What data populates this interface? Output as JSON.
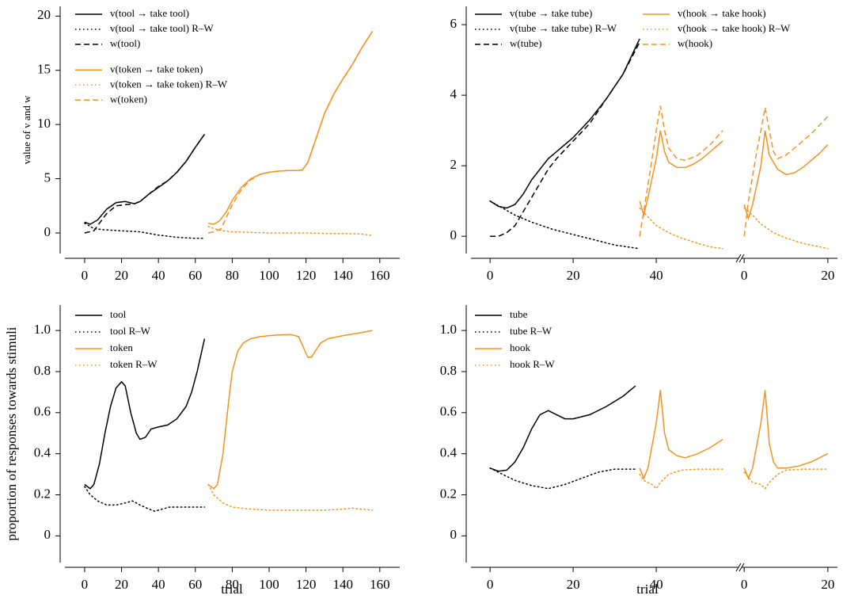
{
  "chart_data": [
    {
      "type": "line",
      "y_label": "value of v and w",
      "xlim": [
        -10.7,
        170.8
      ],
      "ylim": [
        -1.9,
        20.9
      ],
      "xticks": [
        0,
        20,
        40,
        60,
        80,
        100,
        120,
        140,
        160
      ],
      "yticks": [
        0,
        5,
        10,
        15,
        20
      ],
      "series": [
        {
          "name": "v(tool → take tool)",
          "color": "#000000",
          "dash": "solid",
          "x": [
            0,
            3,
            7,
            12,
            17,
            22,
            27,
            30,
            35,
            40,
            45,
            50,
            55,
            60,
            65
          ],
          "values": [
            1.0,
            0.8,
            1.2,
            2.2,
            2.8,
            2.9,
            2.7,
            2.9,
            3.6,
            4.2,
            4.8,
            5.6,
            6.6,
            7.9,
            9.1
          ]
        },
        {
          "name": "v(tool → take tool) R–W",
          "color": "#000000",
          "dash": "dotted",
          "x": [
            0,
            5,
            10,
            20,
            30,
            40,
            50,
            60,
            65
          ],
          "values": [
            0.9,
            0.4,
            0.3,
            0.2,
            0.1,
            -0.2,
            -0.4,
            -0.5,
            -0.5
          ]
        },
        {
          "name": "w(tool)",
          "color": "#000000",
          "dash": "dashed",
          "x": [
            0,
            5,
            8,
            12,
            17,
            22,
            27,
            30,
            35,
            40,
            45,
            50,
            55,
            60,
            65
          ],
          "values": [
            0,
            0.2,
            0.9,
            1.8,
            2.5,
            2.6,
            2.7,
            2.9,
            3.6,
            4.3,
            4.8,
            5.6,
            6.6,
            7.9,
            9.1
          ]
        },
        {
          "name": "v(token → take token)",
          "color": "#f5921e",
          "dash": "solid",
          "x": [
            67,
            70,
            73,
            77,
            80,
            85,
            90,
            95,
            100,
            105,
            110,
            115,
            118,
            121,
            125,
            130,
            135,
            140,
            145,
            150,
            156
          ],
          "values": [
            0.9,
            0.8,
            1.1,
            2.0,
            3.0,
            4.2,
            5.0,
            5.4,
            5.6,
            5.7,
            5.75,
            5.75,
            5.8,
            6.5,
            8.5,
            11,
            12.8,
            14.2,
            15.5,
            17,
            18.6
          ]
        },
        {
          "name": "v(token → take token) R–W",
          "color": "#f5921e",
          "dash": "dotted",
          "x": [
            67,
            70,
            75,
            80,
            90,
            100,
            110,
            120,
            130,
            140,
            150,
            155
          ],
          "values": [
            0.6,
            0.4,
            0.2,
            0.1,
            0.05,
            0,
            0,
            0,
            -0.05,
            -0.05,
            -0.1,
            -0.2
          ]
        },
        {
          "name": "w(token)",
          "color": "#f5921e",
          "dash": "dashed",
          "x": [
            67,
            70,
            74,
            77,
            80,
            85,
            90,
            95,
            100,
            105,
            110,
            115,
            118,
            121,
            125,
            130,
            135,
            140,
            145,
            150,
            156
          ],
          "values": [
            0,
            0.1,
            0.4,
            1.5,
            2.6,
            4.0,
            4.9,
            5.4,
            5.6,
            5.7,
            5.75,
            5.75,
            5.8,
            6.5,
            8.5,
            11,
            12.8,
            14.2,
            15.5,
            17,
            18.6
          ]
        }
      ]
    },
    {
      "type": "line",
      "xlim": [
        -4.6,
        59.8
      ],
      "ylim": [
        -0.49,
        6.52
      ],
      "xticks": [
        0,
        20,
        40
      ],
      "yticks": [
        0,
        2,
        4,
        6
      ],
      "series": [
        {
          "name": "v(tube → take tube)",
          "color": "#000000",
          "dash": "solid",
          "x": [
            0,
            2,
            4,
            6,
            8,
            10,
            12,
            14,
            16,
            18,
            20,
            24,
            28,
            32,
            36
          ],
          "values": [
            1.0,
            0.85,
            0.8,
            0.9,
            1.2,
            1.6,
            1.9,
            2.2,
            2.4,
            2.6,
            2.8,
            3.3,
            3.9,
            4.6,
            5.6
          ]
        },
        {
          "name": "v(tube → take tube) R–W",
          "color": "#000000",
          "dash": "dotted",
          "x": [
            0,
            3,
            6,
            10,
            15,
            20,
            25,
            30,
            36
          ],
          "values": [
            1.0,
            0.8,
            0.6,
            0.4,
            0.2,
            0.05,
            -0.1,
            -0.25,
            -0.35
          ]
        },
        {
          "name": "w(tube)",
          "color": "#000000",
          "dash": "dashed",
          "x": [
            0,
            2,
            4,
            6,
            8,
            10,
            12,
            14,
            16,
            18,
            20,
            24,
            28,
            32,
            36
          ],
          "values": [
            0,
            0,
            0.1,
            0.3,
            0.7,
            1.1,
            1.5,
            1.9,
            2.2,
            2.45,
            2.7,
            3.2,
            3.9,
            4.6,
            5.5
          ]
        },
        {
          "name": "v(hook → take hook)",
          "color": "#f5921e",
          "dash": "solid",
          "x": [
            36,
            37,
            38,
            40,
            41,
            42,
            43,
            45,
            47,
            49,
            51,
            53,
            55,
            56
          ],
          "values": [
            1.0,
            0.6,
            1.1,
            2.2,
            3.0,
            2.4,
            2.1,
            1.95,
            1.95,
            2.05,
            2.2,
            2.4,
            2.6,
            2.7
          ]
        },
        {
          "name": "v(hook → take hook) R–W",
          "color": "#f5921e",
          "dash": "dotted",
          "x": [
            36,
            38,
            40,
            43,
            46,
            50,
            53,
            56
          ],
          "values": [
            0.8,
            0.55,
            0.3,
            0.1,
            -0.05,
            -0.2,
            -0.3,
            -0.35
          ]
        },
        {
          "name": "w(hook)",
          "color": "#f5921e",
          "dash": "dashed",
          "x": [
            36,
            37,
            39,
            40,
            41,
            42,
            43,
            45,
            47,
            50,
            53,
            56
          ],
          "values": [
            0,
            0.7,
            2.2,
            3.0,
            3.7,
            3.0,
            2.5,
            2.2,
            2.15,
            2.3,
            2.6,
            3.0
          ]
        }
      ]
    },
    {
      "type": "line",
      "xlim": [
        -0.6,
        22.3
      ],
      "ylim": [
        -0.49,
        6.52
      ],
      "xticks": [
        0,
        20
      ],
      "series": [
        {
          "color": "#f5921e",
          "dash": "solid",
          "x": [
            0,
            1,
            2,
            4,
            5,
            6,
            8,
            10,
            12,
            14,
            16,
            18,
            20
          ],
          "values": [
            0.9,
            0.5,
            0.9,
            2.0,
            3.0,
            2.3,
            1.9,
            1.75,
            1.8,
            1.95,
            2.15,
            2.35,
            2.6
          ]
        },
        {
          "color": "#f5921e",
          "dash": "dotted",
          "x": [
            0,
            2,
            4,
            7,
            10,
            14,
            18,
            20
          ],
          "values": [
            0.8,
            0.6,
            0.35,
            0.1,
            -0.05,
            -0.2,
            -0.3,
            -0.35
          ]
        },
        {
          "color": "#f5921e",
          "dash": "dashed",
          "x": [
            0,
            1,
            3,
            4,
            5,
            6,
            7,
            8,
            10,
            13,
            16,
            20
          ],
          "values": [
            0,
            1.0,
            2.4,
            3.0,
            3.65,
            3.0,
            2.4,
            2.2,
            2.3,
            2.6,
            2.9,
            3.4
          ]
        }
      ]
    },
    {
      "type": "line",
      "y_label": "proportion of responses towards stimuli",
      "x_label": "trial",
      "xlim": [
        -10.7,
        170.8
      ],
      "ylim": [
        -0.13,
        1.124
      ],
      "xticks": [
        0,
        20,
        40,
        60,
        80,
        100,
        120,
        140,
        160
      ],
      "yticks": [
        0,
        0.2,
        0.4,
        0.6,
        0.8,
        {
          "value": 1,
          "label": "1.0"
        }
      ],
      "series": [
        {
          "name": "tool",
          "color": "#000000",
          "dash": "solid",
          "x": [
            0,
            3,
            5,
            8,
            11,
            14,
            17,
            20,
            22,
            25,
            28,
            30,
            33,
            36,
            40,
            45,
            50,
            55,
            58,
            61,
            65
          ],
          "values": [
            0.25,
            0.23,
            0.25,
            0.35,
            0.5,
            0.63,
            0.72,
            0.75,
            0.73,
            0.6,
            0.5,
            0.47,
            0.48,
            0.52,
            0.53,
            0.54,
            0.57,
            0.63,
            0.7,
            0.8,
            0.96
          ]
        },
        {
          "name": "tool R–W",
          "color": "#000000",
          "dash": "dotted",
          "x": [
            0,
            3,
            7,
            12,
            17,
            22,
            26,
            30,
            35,
            38,
            42,
            46,
            50,
            55,
            60,
            65
          ],
          "values": [
            0.24,
            0.2,
            0.17,
            0.15,
            0.15,
            0.16,
            0.17,
            0.15,
            0.13,
            0.12,
            0.13,
            0.14,
            0.14,
            0.14,
            0.14,
            0.14
          ]
        },
        {
          "name": "token",
          "color": "#f5921e",
          "dash": "solid",
          "x": [
            67,
            70,
            72,
            75,
            78,
            80,
            83,
            86,
            90,
            95,
            100,
            105,
            112,
            116,
            118,
            121,
            123,
            125,
            128,
            132,
            140,
            150,
            156
          ],
          "values": [
            0.25,
            0.23,
            0.25,
            0.4,
            0.65,
            0.8,
            0.9,
            0.94,
            0.96,
            0.97,
            0.975,
            0.978,
            0.98,
            0.97,
            0.93,
            0.87,
            0.87,
            0.9,
            0.94,
            0.96,
            0.975,
            0.99,
            1.0
          ]
        },
        {
          "name": "token R–W",
          "color": "#f5921e",
          "dash": "dotted",
          "x": [
            67,
            70,
            75,
            80,
            90,
            100,
            120,
            130,
            140,
            145,
            150,
            156
          ],
          "values": [
            0.25,
            0.2,
            0.16,
            0.14,
            0.13,
            0.125,
            0.125,
            0.125,
            0.13,
            0.135,
            0.13,
            0.125
          ]
        }
      ]
    },
    {
      "type": "line",
      "x_label": "trial",
      "xlim": [
        -4.6,
        59.8
      ],
      "ylim": [
        -0.13,
        1.124
      ],
      "xticks": [
        0,
        20,
        40
      ],
      "yticks": [
        0,
        0.2,
        0.4,
        0.6,
        0.8,
        {
          "value": 1,
          "label": "1.0"
        }
      ],
      "series": [
        {
          "name": "tube",
          "color": "#000000",
          "dash": "solid",
          "x": [
            0,
            2,
            4,
            6,
            8,
            10,
            12,
            14,
            16,
            18,
            20,
            24,
            28,
            32,
            35
          ],
          "values": [
            0.33,
            0.315,
            0.32,
            0.36,
            0.43,
            0.52,
            0.59,
            0.61,
            0.59,
            0.57,
            0.57,
            0.59,
            0.63,
            0.68,
            0.73
          ]
        },
        {
          "name": "tube R–W",
          "color": "#000000",
          "dash": "dotted",
          "x": [
            0,
            3,
            6,
            10,
            14,
            18,
            22,
            26,
            30,
            35
          ],
          "values": [
            0.33,
            0.3,
            0.27,
            0.245,
            0.23,
            0.25,
            0.28,
            0.31,
            0.325,
            0.325
          ]
        },
        {
          "name": "hook",
          "color": "#f5921e",
          "dash": "solid",
          "x": [
            36,
            37,
            38,
            40,
            41,
            42,
            43,
            45,
            47,
            50,
            53,
            56
          ],
          "values": [
            0.33,
            0.28,
            0.33,
            0.55,
            0.71,
            0.5,
            0.42,
            0.39,
            0.38,
            0.4,
            0.43,
            0.47
          ]
        },
        {
          "name": "hook R–W",
          "color": "#f5921e",
          "dash": "dotted",
          "x": [
            36,
            37,
            39,
            40,
            41,
            43,
            46,
            50,
            56
          ],
          "values": [
            0.3,
            0.27,
            0.25,
            0.23,
            0.26,
            0.3,
            0.32,
            0.325,
            0.325
          ]
        }
      ]
    },
    {
      "type": "line",
      "xlim": [
        -0.6,
        22.3
      ],
      "ylim": [
        -0.13,
        1.124
      ],
      "xticks": [
        0,
        20
      ],
      "series": [
        {
          "color": "#f5921e",
          "dash": "solid",
          "x": [
            0,
            1,
            2,
            4,
            5,
            6,
            7,
            8,
            10,
            13,
            16,
            18,
            20
          ],
          "values": [
            0.33,
            0.28,
            0.33,
            0.55,
            0.71,
            0.45,
            0.36,
            0.33,
            0.33,
            0.34,
            0.36,
            0.38,
            0.4
          ]
        },
        {
          "color": "#f5921e",
          "dash": "dotted",
          "x": [
            0,
            2,
            4,
            5,
            6,
            8,
            10,
            14,
            20
          ],
          "values": [
            0.31,
            0.26,
            0.25,
            0.23,
            0.26,
            0.3,
            0.32,
            0.325,
            0.325
          ]
        }
      ]
    }
  ]
}
